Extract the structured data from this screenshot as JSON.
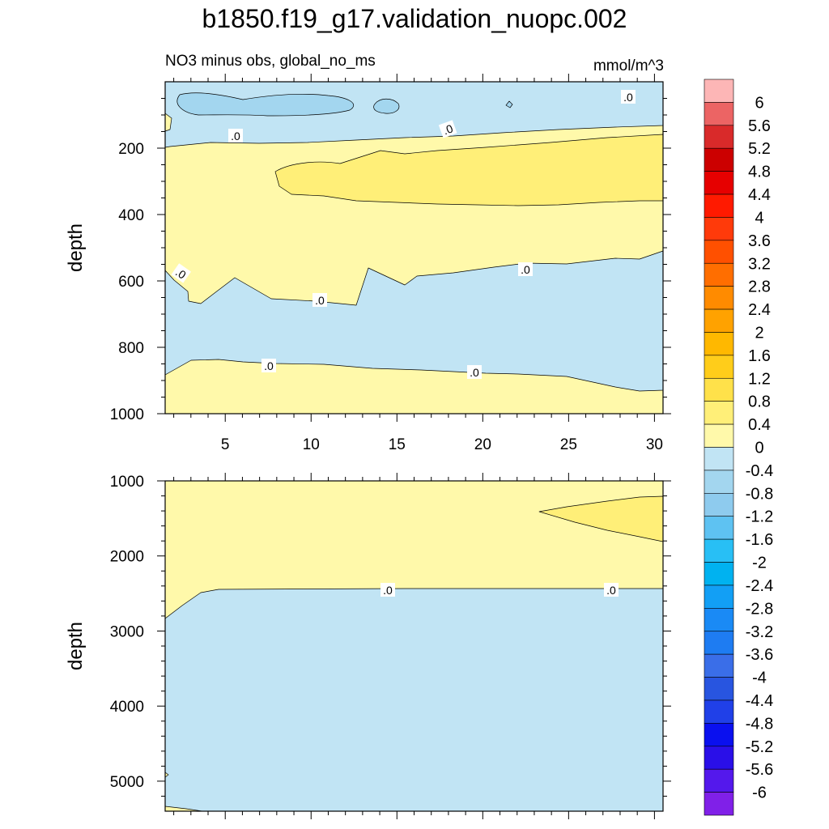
{
  "title": "b1850.f19_g17.validation_nuopc.002",
  "chart_data": [
    {
      "type": "heatmap",
      "panel": "upper",
      "left_label": "NO3 minus obs, global_no_ms",
      "right_label": "mmol/m^3",
      "ylabel": "depth",
      "xlabel": "",
      "xlim": [
        1.5,
        30.5
      ],
      "ylim": [
        0,
        1000
      ],
      "y_reversed": true,
      "x_ticks": [
        5,
        10,
        15,
        20,
        25,
        30
      ],
      "x_tick_labels": [
        "5",
        "10",
        "15",
        "20",
        "25",
        "30"
      ],
      "y_ticks": [
        200,
        400,
        600,
        800,
        1000
      ],
      "y_tick_labels": [
        "200",
        "400",
        "600",
        "800",
        "1000"
      ],
      "contour_labels": [
        {
          "text": ".0",
          "x": 5.5,
          "y": 168
        },
        {
          "text": ".0",
          "x": 19.3,
          "y": 150
        },
        {
          "text": ".0",
          "x": 28.3,
          "y": 40
        },
        {
          "text": ".0",
          "x": 2.4,
          "y": 572
        },
        {
          "text": ".0",
          "x": 10.5,
          "y": 655
        },
        {
          "text": ".0",
          "x": 22.5,
          "y": 572
        },
        {
          "text": ".0",
          "x": 7.2,
          "y": 850
        },
        {
          "text": ".0",
          "x": 19.2,
          "y": 870
        }
      ],
      "regions": [
        {
          "level": "-0.4 to 0",
          "color": "#c1e4f4",
          "description": "shallow band 0-200 m, 550-900 m"
        },
        {
          "level": "-0.8 to -0.4",
          "color": "#a3d6ef",
          "description": "patches near 50-100 m, x 2-15"
        },
        {
          "level": "0 to 0.4",
          "color": "#fff9aa",
          "description": "150-600 m and 850-1000 m"
        },
        {
          "level": "0.4 to 0.8",
          "color": "#ffef78",
          "description": "core 230-370 m, x 8-30"
        }
      ]
    },
    {
      "type": "heatmap",
      "panel": "lower",
      "ylabel": "depth",
      "xlabel": "",
      "xlim": [
        1.5,
        30.5
      ],
      "ylim": [
        1000,
        5400
      ],
      "y_reversed": true,
      "y_ticks": [
        1000,
        2000,
        3000,
        4000,
        5000
      ],
      "y_tick_labels": [
        "1000",
        "2000",
        "3000",
        "4000",
        "5000"
      ],
      "contour_labels": [
        {
          "text": ".0",
          "x": 14.5,
          "y": 2440
        },
        {
          "text": ".0",
          "x": 27.5,
          "y": 2440
        }
      ],
      "regions": [
        {
          "level": "0 to 0.4",
          "color": "#fff9aa",
          "description": "1000-2450 m"
        },
        {
          "level": "0.4 to 0.8",
          "color": "#ffef78",
          "description": "x 23-30, 1200-1800 m"
        },
        {
          "level": "-0.4 to 0",
          "color": "#c1e4f4",
          "description": "below 2450 m"
        }
      ]
    }
  ],
  "colorbar": {
    "labels": [
      "6",
      "5.6",
      "5.2",
      "4.8",
      "4.4",
      "4",
      "3.6",
      "3.2",
      "2.8",
      "2.4",
      "2",
      "1.6",
      "1.2",
      "0.8",
      "0.4",
      "0",
      "-0.4",
      "-0.8",
      "-1.2",
      "-1.6",
      "-2",
      "-2.4",
      "-2.8",
      "-3.2",
      "-3.6",
      "-4",
      "-4.4",
      "-4.8",
      "-5.2",
      "-5.6",
      "-6"
    ],
    "colors": [
      "#fdb6b6",
      "#ec6464",
      "#d92a2a",
      "#cc0000",
      "#e60000",
      "#ff1a00",
      "#ff3a0a",
      "#ff5000",
      "#ff6e00",
      "#ff8b00",
      "#ffa200",
      "#ffb800",
      "#ffcd1a",
      "#ffe14a",
      "#ffef78",
      "#fff9aa",
      "#c1e4f4",
      "#a3d6ef",
      "#8ecbee",
      "#5ec2f2",
      "#28bff5",
      "#00b2f0",
      "#129ff5",
      "#1a8af5",
      "#1e7cf2",
      "#3a6ee8",
      "#2855e0",
      "#2040e8",
      "#0a10ef",
      "#2a0fe8",
      "#5418ec",
      "#8020e8"
    ]
  }
}
